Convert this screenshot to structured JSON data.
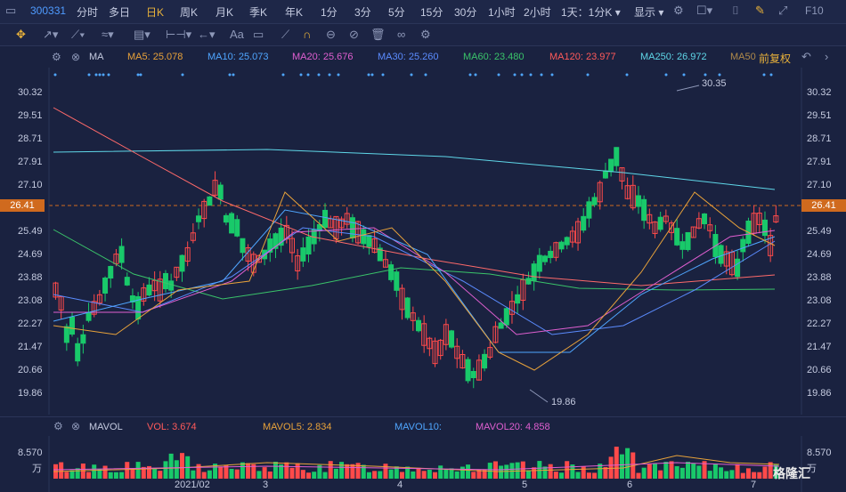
{
  "topbar": {
    "left_icon": "panel-icon",
    "code": "300331",
    "tabs": [
      "分时",
      "多日",
      "日K",
      "周K",
      "月K",
      "季K",
      "年K",
      "1分",
      "3分",
      "5分",
      "15分",
      "30分",
      "1小时",
      "2小时"
    ],
    "active_tab": "日K",
    "period_select": "1天：1分K",
    "display_select": "显示",
    "right_icons": [
      "gear-icon",
      "square-icon",
      "camera-icon",
      "pencil-icon",
      "expand-icon"
    ],
    "f10": "F10"
  },
  "ma_legend": {
    "name": "MA",
    "items": [
      {
        "label": "MA5: 25.078",
        "color": "#e8a23a"
      },
      {
        "label": "MA10: 25.073",
        "color": "#4fa6ff"
      },
      {
        "label": "MA20: 25.676",
        "color": "#e05fd0"
      },
      {
        "label": "MA30: 25.260",
        "color": "#5b8cff"
      },
      {
        "label": "MA60: 23.480",
        "color": "#3ac46a"
      },
      {
        "label": "MA120: 23.977",
        "color": "#ff5a5a"
      },
      {
        "label": "MA250: 26.972",
        "color": "#5fd7e8"
      },
      {
        "label": "MA50",
        "color": "#b08a4a"
      }
    ],
    "adjust": "前复权"
  },
  "price_axis": [
    "30.32",
    "29.51",
    "28.71",
    "27.91",
    "27.10",
    "26.41",
    "25.49",
    "24.69",
    "23.88",
    "23.08",
    "22.27",
    "21.47",
    "20.66",
    "19.86"
  ],
  "current_price": "26.41",
  "annotations": {
    "high": "30.35",
    "low": "19.86"
  },
  "vol_legend": {
    "name": "MAVOL",
    "items": [
      {
        "label": "VOL: 3.674",
        "color": "#ff5a5a"
      },
      {
        "label": "MAVOL5: 2.834",
        "color": "#e8a23a"
      },
      {
        "label": "MAVOL10:",
        "color": "#4fa6ff"
      },
      {
        "label": "MAVOL20: 4.858",
        "color": "#e05fd0"
      }
    ]
  },
  "vol_axis": {
    "top": "8.570",
    "unit": "万"
  },
  "date_labels": [
    "2021/02",
    "3",
    "4",
    "5",
    "6",
    "7"
  ],
  "brand": "格隆汇",
  "colors": {
    "up": "#ff4a4a",
    "down": "#19c96a",
    "bg": "#1a2240",
    "accent": "#e8b13a"
  }
}
